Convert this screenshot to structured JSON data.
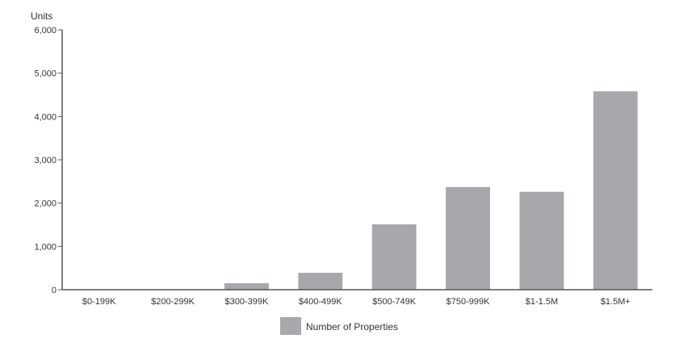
{
  "chart_data": {
    "type": "bar",
    "ylabel": "Units",
    "categories": [
      "$0-199K",
      "$200-299K",
      "$300-399K",
      "$400-499K",
      "$500-749K",
      "$750-999K",
      "$1-1.5M",
      "$1.5M+"
    ],
    "series": [
      {
        "name": "Number of Properties",
        "color": "#a7a8ab",
        "values": [
          0,
          0,
          150,
          390,
          1510,
          2370,
          2260,
          4580
        ]
      }
    ],
    "ylim": [
      0,
      6000
    ],
    "yticks": [
      0,
      1000,
      2000,
      3000,
      4000,
      5000,
      6000
    ],
    "ytick_labels": [
      "0",
      "1,000",
      "2,000",
      "3,000",
      "4,000",
      "5,000",
      "6,000"
    ],
    "grid": false,
    "legend_position": "bottom-center"
  }
}
